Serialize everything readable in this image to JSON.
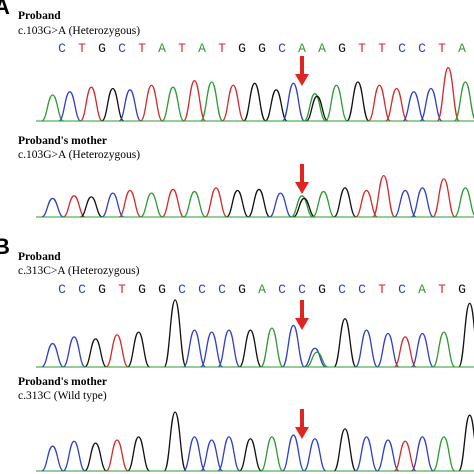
{
  "panels": [
    {
      "letter": "A",
      "bases": [
        "C",
        "T",
        "G",
        "C",
        "T",
        "A",
        "T",
        "A",
        "T",
        "G",
        "G",
        "C",
        "A",
        "A",
        "G",
        "T",
        "T",
        "C",
        "C",
        "T",
        "A"
      ],
      "traces": [
        {
          "title": "Proband",
          "subtitle": "c.103G>A (Heterozygous)",
          "arrow_base_index": 12,
          "peaks": [
            {
              "color": "A",
              "pos": 0.02,
              "h": 0.4
            },
            {
              "color": "C",
              "pos": 0.06,
              "h": 0.45
            },
            {
              "color": "T",
              "pos": 0.11,
              "h": 0.52
            },
            {
              "color": "G",
              "pos": 0.16,
              "h": 0.5
            },
            {
              "color": "C",
              "pos": 0.2,
              "h": 0.48
            },
            {
              "color": "T",
              "pos": 0.25,
              "h": 0.55
            },
            {
              "color": "A",
              "pos": 0.3,
              "h": 0.52
            },
            {
              "color": "T",
              "pos": 0.35,
              "h": 0.62
            },
            {
              "color": "A",
              "pos": 0.39,
              "h": 0.6
            },
            {
              "color": "T",
              "pos": 0.44,
              "h": 0.55
            },
            {
              "color": "G",
              "pos": 0.49,
              "h": 0.58
            },
            {
              "color": "G",
              "pos": 0.54,
              "h": 0.48
            },
            {
              "color": "C",
              "pos": 0.58,
              "h": 0.58
            },
            {
              "color": "A",
              "pos": 0.63,
              "h": 0.42
            },
            {
              "color": "G",
              "pos": 0.635,
              "h": 0.38
            },
            {
              "color": "A",
              "pos": 0.68,
              "h": 0.55
            },
            {
              "color": "G",
              "pos": 0.73,
              "h": 0.6
            },
            {
              "color": "T",
              "pos": 0.78,
              "h": 0.55
            },
            {
              "color": "T",
              "pos": 0.82,
              "h": 0.5
            },
            {
              "color": "C",
              "pos": 0.86,
              "h": 0.45
            },
            {
              "color": "C",
              "pos": 0.9,
              "h": 0.5
            },
            {
              "color": "T",
              "pos": 0.94,
              "h": 0.82
            },
            {
              "color": "A",
              "pos": 0.98,
              "h": 0.6
            }
          ]
        },
        {
          "title": "Proband's mother",
          "subtitle": "c.103G>A (Heterozygous)",
          "arrow_base_index": 12,
          "peaks": [
            {
              "color": "C",
              "pos": 0.02,
              "h": 0.35
            },
            {
              "color": "T",
              "pos": 0.07,
              "h": 0.4
            },
            {
              "color": "G",
              "pos": 0.11,
              "h": 0.38
            },
            {
              "color": "C",
              "pos": 0.16,
              "h": 0.45
            },
            {
              "color": "T",
              "pos": 0.2,
              "h": 0.5
            },
            {
              "color": "A",
              "pos": 0.25,
              "h": 0.45
            },
            {
              "color": "T",
              "pos": 0.3,
              "h": 0.52
            },
            {
              "color": "A",
              "pos": 0.35,
              "h": 0.48
            },
            {
              "color": "T",
              "pos": 0.4,
              "h": 0.55
            },
            {
              "color": "G",
              "pos": 0.45,
              "h": 0.5
            },
            {
              "color": "G",
              "pos": 0.5,
              "h": 0.52
            },
            {
              "color": "C",
              "pos": 0.55,
              "h": 0.45
            },
            {
              "color": "A",
              "pos": 0.6,
              "h": 0.4
            },
            {
              "color": "G",
              "pos": 0.605,
              "h": 0.35
            },
            {
              "color": "A",
              "pos": 0.65,
              "h": 0.48
            },
            {
              "color": "G",
              "pos": 0.7,
              "h": 0.55
            },
            {
              "color": "T",
              "pos": 0.75,
              "h": 0.5
            },
            {
              "color": "T",
              "pos": 0.79,
              "h": 0.78
            },
            {
              "color": "C",
              "pos": 0.84,
              "h": 0.5
            },
            {
              "color": "C",
              "pos": 0.88,
              "h": 0.55
            },
            {
              "color": "T",
              "pos": 0.93,
              "h": 0.72
            },
            {
              "color": "A",
              "pos": 0.98,
              "h": 0.55
            }
          ]
        }
      ]
    },
    {
      "letter": "B",
      "bases": [
        "C",
        "C",
        "G",
        "T",
        "G",
        "G",
        "C",
        "C",
        "C",
        "G",
        "A",
        "C",
        "C",
        "G",
        "C",
        "C",
        "T",
        "C",
        "A",
        "T",
        "G"
      ],
      "traces": [
        {
          "title": "Proband",
          "subtitle": "c.313C>A (Heterozygous)",
          "arrow_base_index": 12,
          "peaks": [
            {
              "color": "C",
              "pos": 0.02,
              "h": 0.35
            },
            {
              "color": "C",
              "pos": 0.07,
              "h": 0.45
            },
            {
              "color": "G",
              "pos": 0.12,
              "h": 0.42
            },
            {
              "color": "T",
              "pos": 0.17,
              "h": 0.48
            },
            {
              "color": "G",
              "pos": 0.22,
              "h": 0.52
            },
            {
              "color": "G",
              "pos": 0.305,
              "h": 1.0
            },
            {
              "color": "C",
              "pos": 0.35,
              "h": 0.55
            },
            {
              "color": "C",
              "pos": 0.39,
              "h": 0.52
            },
            {
              "color": "C",
              "pos": 0.43,
              "h": 0.55
            },
            {
              "color": "G",
              "pos": 0.48,
              "h": 0.55
            },
            {
              "color": "A",
              "pos": 0.53,
              "h": 0.58
            },
            {
              "color": "C",
              "pos": 0.58,
              "h": 0.62
            },
            {
              "color": "C",
              "pos": 0.63,
              "h": 0.28
            },
            {
              "color": "A",
              "pos": 0.635,
              "h": 0.22
            },
            {
              "color": "G",
              "pos": 0.7,
              "h": 0.72
            },
            {
              "color": "C",
              "pos": 0.75,
              "h": 0.55
            },
            {
              "color": "C",
              "pos": 0.8,
              "h": 0.5
            },
            {
              "color": "T",
              "pos": 0.84,
              "h": 0.45
            },
            {
              "color": "C",
              "pos": 0.88,
              "h": 0.5
            },
            {
              "color": "A",
              "pos": 0.93,
              "h": 0.52
            },
            {
              "color": "G",
              "pos": 0.99,
              "h": 0.95
            }
          ]
        },
        {
          "title": "Proband's mother",
          "subtitle": "c.313C (Wild type)",
          "arrow_base_index": 12,
          "peaks": [
            {
              "color": "C",
              "pos": 0.02,
              "h": 0.4
            },
            {
              "color": "C",
              "pos": 0.07,
              "h": 0.48
            },
            {
              "color": "G",
              "pos": 0.12,
              "h": 0.45
            },
            {
              "color": "T",
              "pos": 0.17,
              "h": 0.5
            },
            {
              "color": "G",
              "pos": 0.22,
              "h": 0.55
            },
            {
              "color": "G",
              "pos": 0.305,
              "h": 0.95
            },
            {
              "color": "C",
              "pos": 0.35,
              "h": 0.55
            },
            {
              "color": "C",
              "pos": 0.39,
              "h": 0.5
            },
            {
              "color": "C",
              "pos": 0.43,
              "h": 0.55
            },
            {
              "color": "G",
              "pos": 0.48,
              "h": 0.52
            },
            {
              "color": "A",
              "pos": 0.53,
              "h": 0.55
            },
            {
              "color": "C",
              "pos": 0.58,
              "h": 0.58
            },
            {
              "color": "C",
              "pos": 0.63,
              "h": 0.52
            },
            {
              "color": "G",
              "pos": 0.7,
              "h": 0.68
            },
            {
              "color": "C",
              "pos": 0.75,
              "h": 0.55
            },
            {
              "color": "C",
              "pos": 0.8,
              "h": 0.5
            },
            {
              "color": "T",
              "pos": 0.84,
              "h": 0.48
            },
            {
              "color": "C",
              "pos": 0.88,
              "h": 0.55
            },
            {
              "color": "A",
              "pos": 0.93,
              "h": 0.55
            },
            {
              "color": "G",
              "pos": 0.99,
              "h": 0.9
            }
          ]
        }
      ]
    }
  ],
  "colors": {
    "A": "#2e9a32",
    "C": "#2f3fc9",
    "G": "#111111",
    "T": "#d42a2a",
    "arrow": "#e0241f"
  }
}
